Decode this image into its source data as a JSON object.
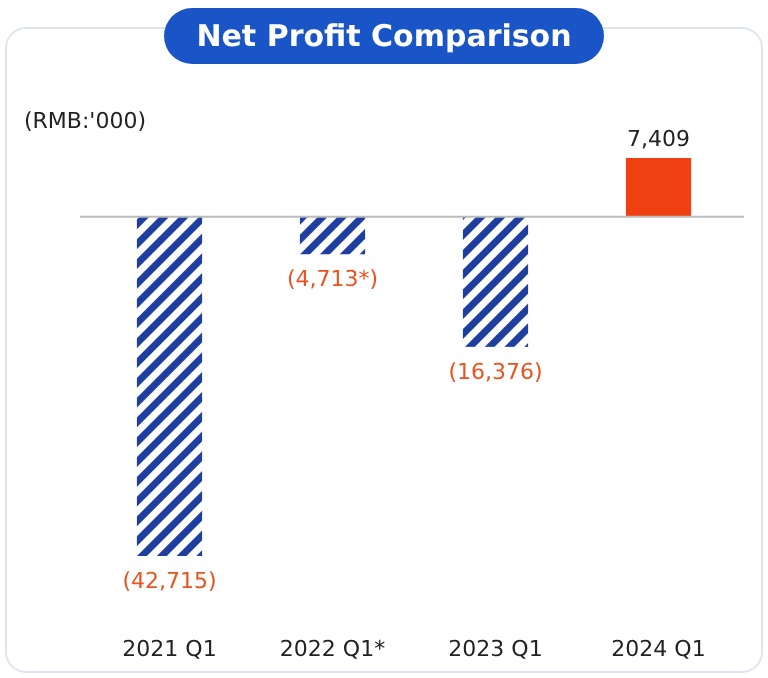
{
  "chart_data": {
    "type": "bar",
    "title": "Net Profit Comparison",
    "categories": [
      "2021 Q1",
      "2022 Q1*",
      "2023 Q1",
      "2024 Q1"
    ],
    "values": [
      -42715,
      -4713,
      -16376,
      7409
    ],
    "colors": [
      "#1f3fa0",
      "#1f3fa0",
      "#1f3fa0",
      "#ee4010"
    ],
    "value_labels": [
      "(42,715)",
      "(4,713*)",
      "(16,376)",
      "7,409"
    ],
    "annotations": [
      "(RMB:'000)"
    ]
  }
}
